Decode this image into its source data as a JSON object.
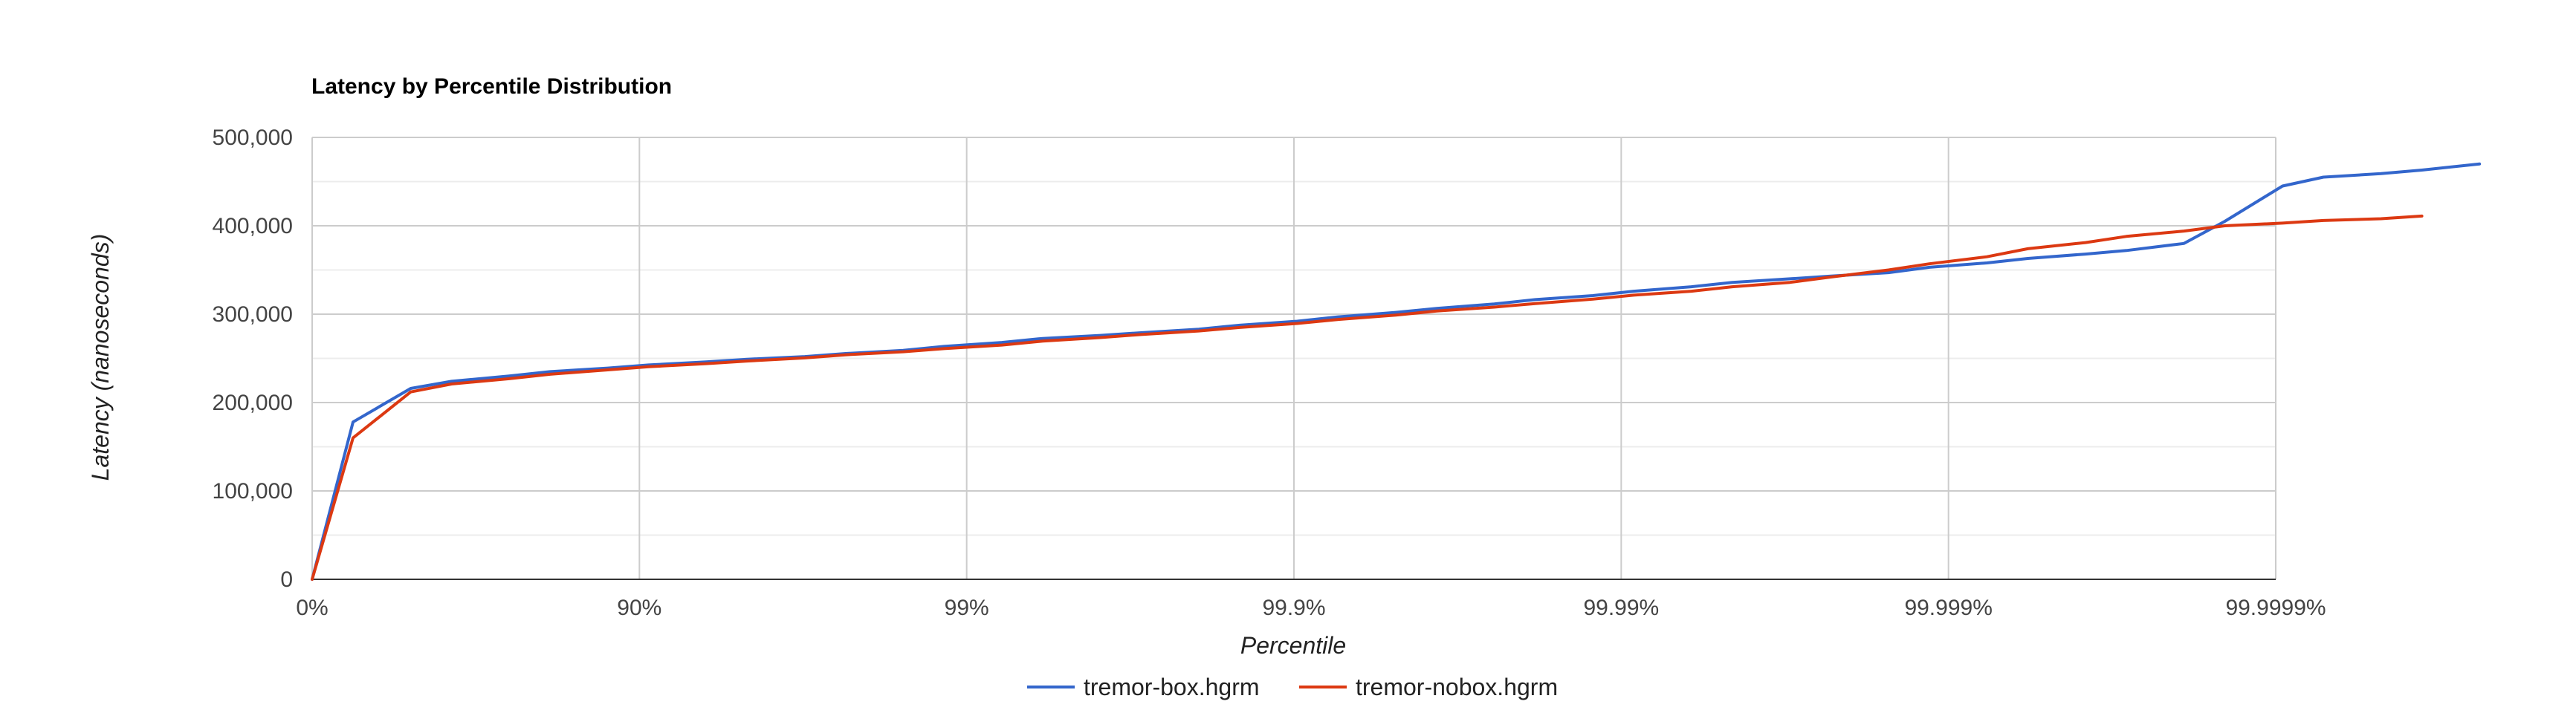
{
  "chart_data": {
    "type": "line",
    "title": "Latency by Percentile Distribution",
    "xlabel": "Percentile",
    "ylabel": "Latency (nanoseconds)",
    "x_scale": "log of 1/(1 - percentile)",
    "x_ticks": [
      "0%",
      "90%",
      "99%",
      "99.9%",
      "99.99%",
      "99.999%",
      "99.9999%"
    ],
    "y_ticks": [
      "0",
      "100,000",
      "200,000",
      "300,000",
      "400,000",
      "500,000"
    ],
    "ylim": [
      0,
      500000
    ],
    "grid": true,
    "legend_position": "bottom",
    "series": [
      {
        "name": "tremor-box.hgrm",
        "color": "#3366cc",
        "percentile": [
          0,
          25,
          50,
          62.5,
          75,
          81.25,
          87.5,
          90.625,
          93.75,
          95.3125,
          96.875,
          97.65625,
          98.4375,
          98.828125,
          99.21875,
          99.4140625,
          99.609375,
          99.70703125,
          99.8046875,
          99.853515625,
          99.90234375,
          99.9267578125,
          99.951171875,
          99.96337890625,
          99.9755859375,
          99.98168945312,
          99.98779296875,
          99.99084472656,
          99.99389648438,
          99.99542236328,
          99.99694824219,
          99.99771118164,
          99.99847412109,
          99.99885559082,
          99.99923706055,
          99.99942779541,
          99.99961853027,
          99.9997138977,
          99.99980926514,
          99.99985694885,
          99.99990463257,
          99.99992847443,
          99.99995231628,
          99.99996423721,
          99.99997615814
        ],
        "latency": [
          0,
          178000,
          216000,
          224000,
          230000,
          235000,
          239000,
          242500,
          246000,
          249000,
          252000,
          255500,
          259000,
          263500,
          268000,
          272500,
          276000,
          279000,
          283000,
          287500,
          292000,
          297000,
          302000,
          306500,
          311500,
          316500,
          321000,
          326000,
          331000,
          336000,
          340000,
          343000,
          347000,
          353000,
          358000,
          363000,
          368000,
          372000,
          380000,
          405000,
          445000,
          455000,
          459000,
          463000,
          470000
        ]
      },
      {
        "name": "tremor-nobox.hgrm",
        "color": "#dc3912",
        "percentile": [
          0,
          25,
          50,
          62.5,
          75,
          81.25,
          87.5,
          90.625,
          93.75,
          95.3125,
          96.875,
          97.65625,
          98.4375,
          98.828125,
          99.21875,
          99.4140625,
          99.609375,
          99.70703125,
          99.8046875,
          99.853515625,
          99.90234375,
          99.9267578125,
          99.951171875,
          99.96337890625,
          99.9755859375,
          99.98168945312,
          99.98779296875,
          99.99084472656,
          99.99389648438,
          99.99542236328,
          99.99694824219,
          99.99771118164,
          99.99847412109,
          99.99885559082,
          99.99923706055,
          99.99942779541,
          99.99961853027,
          99.9997138977,
          99.99980926514,
          99.99985694885,
          99.99990463257,
          99.99992847443,
          99.99995231628,
          99.99996423721
        ],
        "latency": [
          0,
          160000,
          212000,
          221000,
          227000,
          232000,
          237000,
          240500,
          244000,
          247000,
          250500,
          254000,
          257500,
          261000,
          265000,
          269500,
          273500,
          277000,
          281000,
          285000,
          289500,
          294000,
          299000,
          303500,
          308000,
          312000,
          317000,
          321500,
          326000,
          331000,
          336000,
          342000,
          350000,
          357000,
          365000,
          374000,
          381000,
          388000,
          394000,
          400000,
          403000,
          406000,
          408000,
          411000
        ]
      }
    ]
  }
}
